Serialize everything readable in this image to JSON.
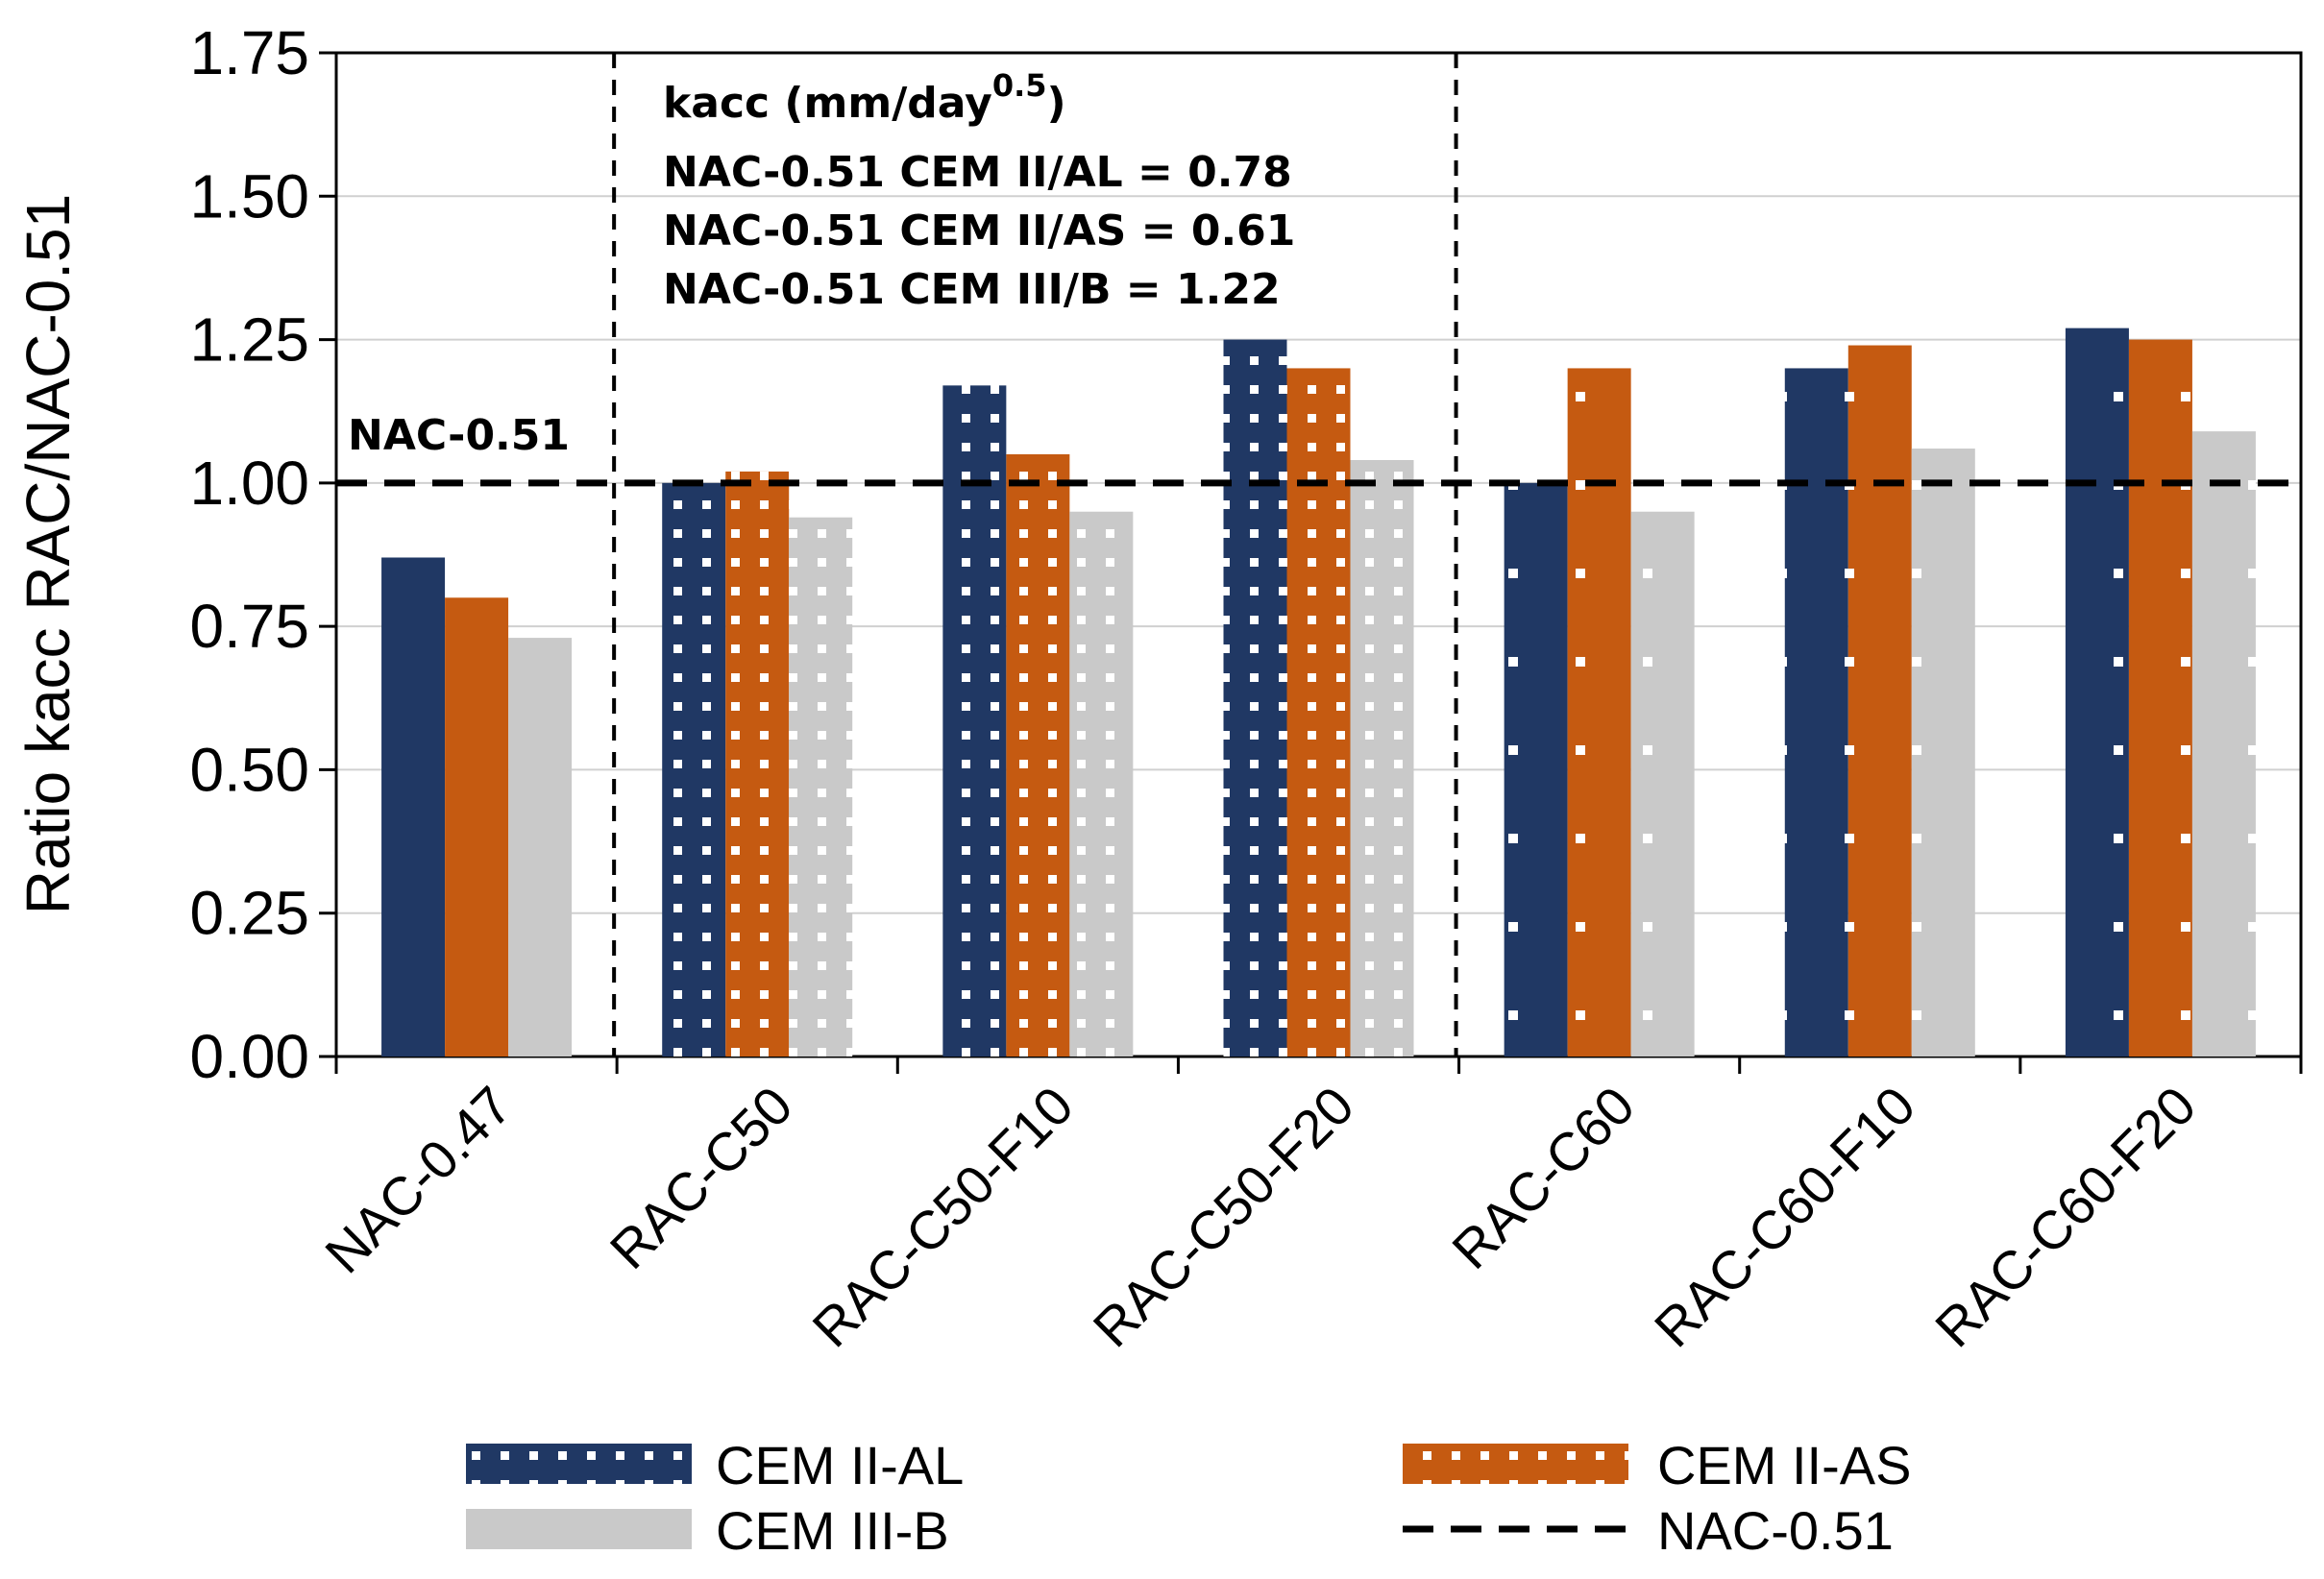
{
  "chart_data": {
    "type": "bar",
    "ylabel": "Ratio kacc RAC/NAC-0.51",
    "xlabel": "",
    "ylim": [
      0,
      1.75
    ],
    "yticks": [
      "0.00",
      "0.25",
      "0.50",
      "0.75",
      "1.00",
      "1.25",
      "1.50",
      "1.75"
    ],
    "categories": [
      "NAC-0.47",
      "RAC-C50",
      "RAC-C50-F10",
      "RAC-C50-F20",
      "RAC-C60",
      "RAC-C60-F10",
      "RAC-C60-F20"
    ],
    "series": [
      {
        "name": "CEM II-AL",
        "color": "#203864",
        "values": [
          0.87,
          1.0,
          1.17,
          1.25,
          1.0,
          1.2,
          1.27
        ]
      },
      {
        "name": "CEM II-AS",
        "color": "#C55A11",
        "values": [
          0.8,
          1.02,
          1.05,
          1.2,
          1.2,
          1.24,
          1.25
        ]
      },
      {
        "name": "CEM III-B",
        "color": "#C9C9C9",
        "values": [
          0.73,
          0.94,
          0.95,
          1.04,
          0.95,
          1.06,
          1.09
        ]
      }
    ],
    "reference_line": {
      "name": "NAC-0.51",
      "value": 1.0,
      "label": "NAC-0.51"
    },
    "annotation": {
      "title": "kacc  (mm/day",
      "title_sup": "0.5",
      "title_end": ")",
      "lines": [
        "NAC-0.51  CEM II/AL  = 0.78",
        "NAC-0.51  CEM II/AS  = 0.61",
        "NAC-0.51  CEM III/B  = 1.22"
      ]
    },
    "legend": {
      "placement": "bottom",
      "items": [
        "CEM II-AL",
        "CEM II-AS",
        "CEM III-B",
        "NAC-0.51"
      ]
    }
  }
}
